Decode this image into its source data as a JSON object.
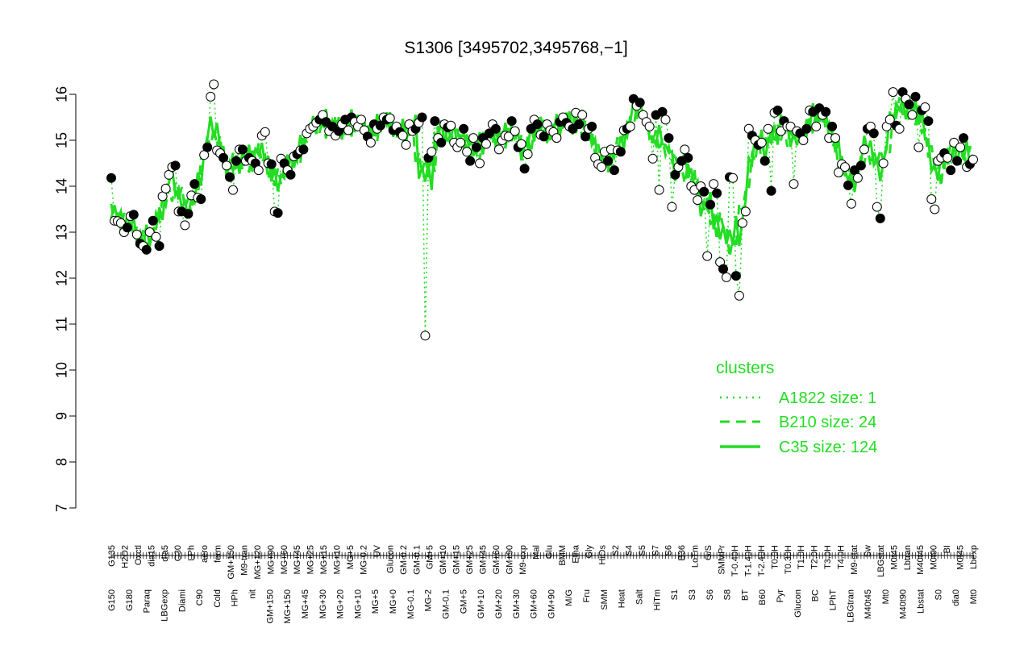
{
  "chart_data": {
    "type": "line",
    "title": "S1306 [3495702,3495768,−1]",
    "xlabel": "",
    "ylabel": "",
    "ylim": [
      7,
      16
    ],
    "y_ticks": [
      7,
      8,
      9,
      10,
      11,
      12,
      13,
      14,
      15,
      16
    ],
    "grid": false,
    "legend": {
      "title": "clusters",
      "placement": "bottom-right",
      "entries": [
        {
          "label": "A1822 size: 1",
          "style": "dotted"
        },
        {
          "label": "B210 size: 24",
          "style": "dashed"
        },
        {
          "label": "C35 size: 124",
          "style": "solid"
        }
      ]
    },
    "colors": {
      "line": "#22dd22",
      "point_fill_dark": "#000000",
      "point_fill_light": "#ffffff"
    },
    "x_tick_labels_upper": [
      "G135",
      "H2O2",
      "Oxctl",
      "dia15",
      "dia5",
      "C30",
      "LPh",
      "aero",
      "ferm",
      "GM+150",
      "M9-tran",
      "MG+120",
      "MG+90",
      "MG+60",
      "MG+45",
      "MG+25",
      "MG+15",
      "MG+10",
      "MG+5",
      "MG-0.2",
      "UV",
      "Glucon",
      "GM-0.2",
      "GM-0.1",
      "GM+5",
      "GM+10",
      "GM+15",
      "GM+25",
      "GM+45",
      "GM+60",
      "GM+90",
      "M9-exp",
      "Mal",
      "Glu",
      "BMM",
      "Etha",
      "Gly",
      "HiOs",
      "S2",
      "S4",
      "S5",
      "S7",
      "S6",
      "B36",
      "LoTm",
      "G/S",
      "SMMPr",
      "T-0.40H",
      "T-1.40H",
      "T-2.40H",
      "T0.0H",
      "T0.30H",
      "T1.0H",
      "T2.0H",
      "T3.0H",
      "T4.0H",
      "M9-stat",
      "Sw",
      "LBGstat",
      "M0t45",
      "Lbtran",
      "M40t45",
      "M0t90",
      "BI",
      "M0t45",
      "Lbexp"
    ],
    "x_tick_labels_lower": [
      "G150",
      "G180",
      "Paraq",
      "LBGexp",
      "Diami",
      "C90",
      "Cold",
      "HPh",
      "nit",
      "GM+150",
      "MG+150",
      "MG+45",
      "MG+30",
      "MG+20",
      "MG+10",
      "MG+5",
      "MG+0",
      "MG-0.1",
      "MG-2",
      "GM-0.1",
      "GM+5",
      "GM+10",
      "GM+20",
      "GM+30",
      "GM+60",
      "GM+90",
      "M/G",
      "Fru",
      "SMM",
      "Heat",
      "Salt",
      "HiTm",
      "S1",
      "S3",
      "S6",
      "S8",
      "BT",
      "B60",
      "Pyr",
      "Glucon",
      "BC",
      "LPhT",
      "LBGtran",
      "M40t45",
      "Mt0",
      "M40t90",
      "Lbstat",
      "S0",
      "dia0",
      "Mt0"
    ],
    "series": [
      {
        "style": "points",
        "values": [
          14.18,
          13.25,
          13.24,
          13.2,
          13.0,
          13.1,
          13.35,
          13.38,
          12.95,
          12.75,
          12.7,
          12.62,
          13.0,
          13.25,
          12.9,
          12.7,
          13.78,
          13.95,
          14.25,
          14.42,
          14.45,
          13.45,
          13.45,
          13.15,
          13.4,
          13.8,
          14.05,
          13.75,
          13.72,
          14.68,
          14.85,
          15.95,
          16.22,
          14.78,
          14.72,
          14.62,
          14.45,
          14.2,
          13.92,
          14.55,
          14.8,
          14.8,
          14.55,
          14.62,
          14.55,
          14.5,
          14.35,
          15.1,
          15.18,
          14.5,
          14.48,
          13.45,
          13.42,
          14.6,
          14.5,
          14.35,
          14.25,
          14.65,
          14.7,
          14.78,
          14.8,
          15.15,
          15.25,
          15.3,
          15.38,
          15.45,
          15.55,
          15.4,
          15.2,
          15.3,
          15.1,
          15.2,
          15.35,
          15.45,
          15.22,
          15.5,
          15.4,
          15.3,
          15.45,
          15.22,
          15.08,
          14.95,
          15.35,
          15.25,
          15.32,
          15.5,
          15.45,
          15.48,
          15.22,
          15.3,
          15.18,
          15.1,
          14.9,
          15.35,
          15.2,
          15.25,
          15.38,
          15.5,
          10.75,
          14.62,
          14.75,
          15.42,
          15.05,
          14.95,
          15.35,
          15.28,
          15.32,
          14.95,
          14.85,
          14.95,
          15.25,
          14.75,
          14.55,
          15.05,
          14.85,
          14.5,
          15.05,
          14.92,
          15.15,
          15.35,
          15.25,
          14.8,
          15.0,
          15.1,
          15.08,
          15.42,
          15.2,
          14.85,
          14.92,
          14.38,
          14.7,
          15.25,
          15.45,
          15.35,
          15.12,
          15.08,
          15.35,
          15.22,
          15.18,
          15.05,
          15.4,
          15.5,
          15.38,
          15.3,
          15.25,
          15.6,
          15.35,
          15.55,
          15.08,
          15.25,
          15.3,
          14.62,
          14.48,
          14.42,
          14.75,
          14.55,
          14.8,
          14.35,
          14.78,
          14.75,
          15.22,
          15.25,
          15.3,
          15.9,
          15.75,
          15.82,
          15.55,
          15.4,
          15.3,
          14.6,
          15.55,
          13.92,
          15.62,
          15.45,
          15.05,
          13.55,
          14.25,
          14.42,
          14.55,
          14.8,
          14.62,
          14.0,
          13.92,
          13.7,
          14.0,
          13.88,
          12.48,
          13.6,
          14.05,
          13.85,
          12.35,
          12.2,
          12.02,
          14.2,
          14.18,
          12.05,
          11.62,
          13.2,
          13.45,
          15.25,
          15.1,
          15.0,
          14.9,
          14.95,
          14.55,
          15.25,
          13.9,
          15.6,
          15.65,
          15.2,
          15.42,
          15.3,
          15.3,
          14.05,
          15.2,
          15.15,
          15.0,
          15.25,
          15.65,
          15.62,
          15.3,
          15.7,
          15.55,
          15.62,
          15.05,
          15.3,
          15.05,
          14.3,
          14.48,
          14.42,
          14.02,
          13.62,
          14.35,
          14.18,
          14.45,
          14.8,
          15.25,
          15.3,
          15.15,
          13.55,
          13.3,
          14.5,
          15.3,
          15.45,
          16.05,
          15.32,
          15.25,
          16.05,
          15.9,
          15.78,
          15.55,
          15.95,
          14.85,
          15.65,
          15.72,
          15.42,
          13.72,
          13.5,
          14.55,
          14.62,
          14.72,
          14.62,
          14.35,
          14.95,
          14.55,
          14.85,
          15.05,
          14.42,
          14.48,
          14.58
        ]
      }
    ]
  }
}
